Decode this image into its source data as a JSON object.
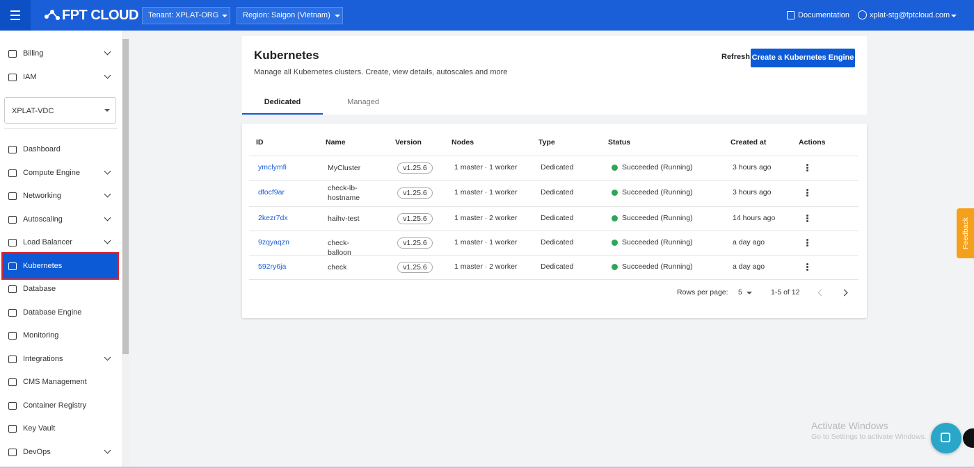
{
  "header": {
    "brand": "FPT CLOUD",
    "tenant": "Tenant: XPLAT-ORG",
    "region": "Region: Saigon (Vietnam)",
    "documentation": "Documentation",
    "user": "xplat-stg@fptcloud.com"
  },
  "sidebar": {
    "top_items": [
      {
        "label": "Billing",
        "expandable": true
      },
      {
        "label": "IAM",
        "expandable": true
      }
    ],
    "project": "XPLAT-VDC",
    "items": [
      {
        "label": "Dashboard",
        "expandable": false
      },
      {
        "label": "Compute Engine",
        "expandable": true
      },
      {
        "label": "Networking",
        "expandable": true
      },
      {
        "label": "Autoscaling",
        "expandable": true
      },
      {
        "label": "Load Balancer",
        "expandable": true
      },
      {
        "label": "Kubernetes",
        "expandable": false,
        "active": true
      },
      {
        "label": "Database",
        "expandable": false
      },
      {
        "label": "Database Engine",
        "expandable": false
      },
      {
        "label": "Monitoring",
        "expandable": false
      },
      {
        "label": "Integrations",
        "expandable": true
      },
      {
        "label": "CMS Management",
        "expandable": false
      },
      {
        "label": "Container Registry",
        "expandable": false
      },
      {
        "label": "Key Vault",
        "expandable": false
      },
      {
        "label": "DevOps",
        "expandable": true
      }
    ]
  },
  "page": {
    "title": "Kubernetes",
    "subtitle": "Manage all Kubernetes clusters. Create, view details, autoscales and more",
    "refresh": "Refresh",
    "create": "Create a Kubernetes Engine",
    "tabs": [
      "Dedicated",
      "Managed"
    ],
    "active_tab": 0
  },
  "table": {
    "columns": [
      "ID",
      "Name",
      "Version",
      "Nodes",
      "Type",
      "Status",
      "Created at",
      "Actions"
    ],
    "rows": [
      [
        "ymclymfi",
        "MyCluster",
        "v1.25.6",
        "1 master · 1 worker",
        "Dedicated",
        "Succeeded (Running)",
        "3 hours ago"
      ],
      [
        "dfocf9ar",
        "check-lb-hostname",
        "v1.25.6",
        "1 master · 1 worker",
        "Dedicated",
        "Succeeded (Running)",
        "3 hours ago"
      ],
      [
        "2kezr7dx",
        "haihv-test",
        "v1.25.6",
        "1 master · 2 worker",
        "Dedicated",
        "Succeeded (Running)",
        "14 hours ago"
      ],
      [
        "9zqyaqzn",
        "check-balloon",
        "v1.25.6",
        "1 master · 1 worker",
        "Dedicated",
        "Succeeded (Running)",
        "a day ago"
      ],
      [
        "592ry6ja",
        "check",
        "v1.25.6",
        "1 master · 2 worker",
        "Dedicated",
        "Succeeded (Running)",
        "a day ago"
      ]
    ]
  },
  "pagination": {
    "rows_per_page_label": "Rows per page:",
    "rows_per_page": 5,
    "range": "1-5 of 12"
  },
  "feedback": "Feedback",
  "watermark": {
    "title": "Activate Windows",
    "subtitle": "Go to Settings to activate Windows."
  }
}
